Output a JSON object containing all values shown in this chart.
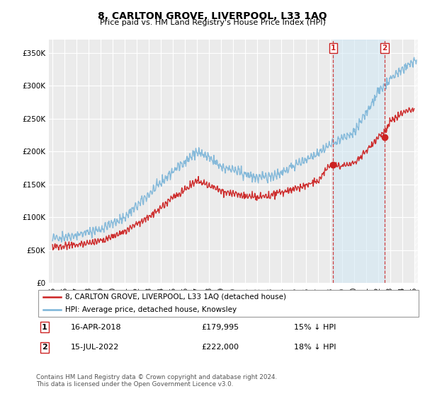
{
  "title": "8, CARLTON GROVE, LIVERPOOL, L33 1AQ",
  "subtitle": "Price paid vs. HM Land Registry's House Price Index (HPI)",
  "ylabel_ticks": [
    "£0",
    "£50K",
    "£100K",
    "£150K",
    "£200K",
    "£250K",
    "£300K",
    "£350K"
  ],
  "ytick_values": [
    0,
    50000,
    100000,
    150000,
    200000,
    250000,
    300000,
    350000
  ],
  "ylim": [
    0,
    370000
  ],
  "xlim_start": 1994.7,
  "xlim_end": 2025.3,
  "hpi_color": "#7ab4d8",
  "price_color": "#cc2222",
  "marker1_date": 2018.29,
  "marker2_date": 2022.54,
  "marker1_price": 179995,
  "marker2_price": 222000,
  "shade_color": "#d0e8f5",
  "shade_alpha": 0.55,
  "legend_label1": "8, CARLTON GROVE, LIVERPOOL, L33 1AQ (detached house)",
  "legend_label2": "HPI: Average price, detached house, Knowsley",
  "footer": "Contains HM Land Registry data © Crown copyright and database right 2024.\nThis data is licensed under the Open Government Licence v3.0.",
  "bg_color": "#ffffff",
  "plot_bg_color": "#ebebeb"
}
